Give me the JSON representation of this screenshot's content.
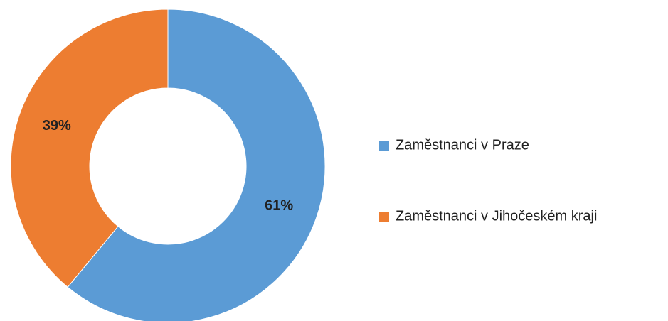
{
  "chart_data": {
    "type": "donut",
    "categories": [
      "Zaměstnanci v Praze",
      "Zaměstnanci v Jihočeském kraji"
    ],
    "values": [
      61,
      39
    ],
    "value_labels": [
      "61%",
      "39%"
    ],
    "colors": [
      "#5b9bd5",
      "#ed7d31"
    ]
  }
}
